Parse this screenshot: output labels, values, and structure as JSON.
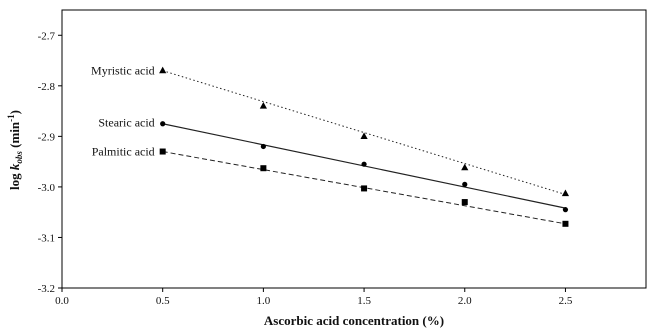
{
  "chart_data": {
    "type": "scatter",
    "title": "",
    "xlabel": "Ascorbic acid concentration (%)",
    "ylabel": {
      "main": "log ",
      "k": "k",
      "sub": "obs",
      "unit": " (min",
      "sup": "-1",
      "close": ")"
    },
    "xlim": [
      0.0,
      2.9
    ],
    "ylim": [
      -3.2,
      -2.65
    ],
    "x_ticks": [
      "0.0",
      "0.5",
      "1.0",
      "1.5",
      "2.0",
      "2.5"
    ],
    "y_ticks": [
      "-2.7",
      "-2.8",
      "-2.9",
      "-3.0",
      "-3.1",
      "-3.2"
    ],
    "grid": false,
    "series": [
      {
        "name": "Myristic acid",
        "marker": "triangle",
        "line_style": "dotted",
        "x": [
          0.5,
          1.0,
          1.5,
          2.0,
          2.5
        ],
        "y": [
          -2.77,
          -2.84,
          -2.9,
          -2.962,
          -3.013
        ],
        "fit": [
          -2.77,
          -3.015
        ]
      },
      {
        "name": "Stearic acid",
        "marker": "circle",
        "line_style": "solid",
        "x": [
          0.5,
          1.0,
          1.5,
          2.0,
          2.5
        ],
        "y": [
          -2.875,
          -2.92,
          -2.955,
          -2.995,
          -3.045
        ],
        "fit": [
          -2.875,
          -3.042
        ]
      },
      {
        "name": "Palmitic acid",
        "marker": "square",
        "line_style": "dashed",
        "x": [
          0.5,
          1.0,
          1.5,
          2.0,
          2.5
        ],
        "y": [
          -2.93,
          -2.963,
          -3.003,
          -3.03,
          -3.073
        ],
        "fit": [
          -2.93,
          -3.073
        ]
      }
    ]
  }
}
